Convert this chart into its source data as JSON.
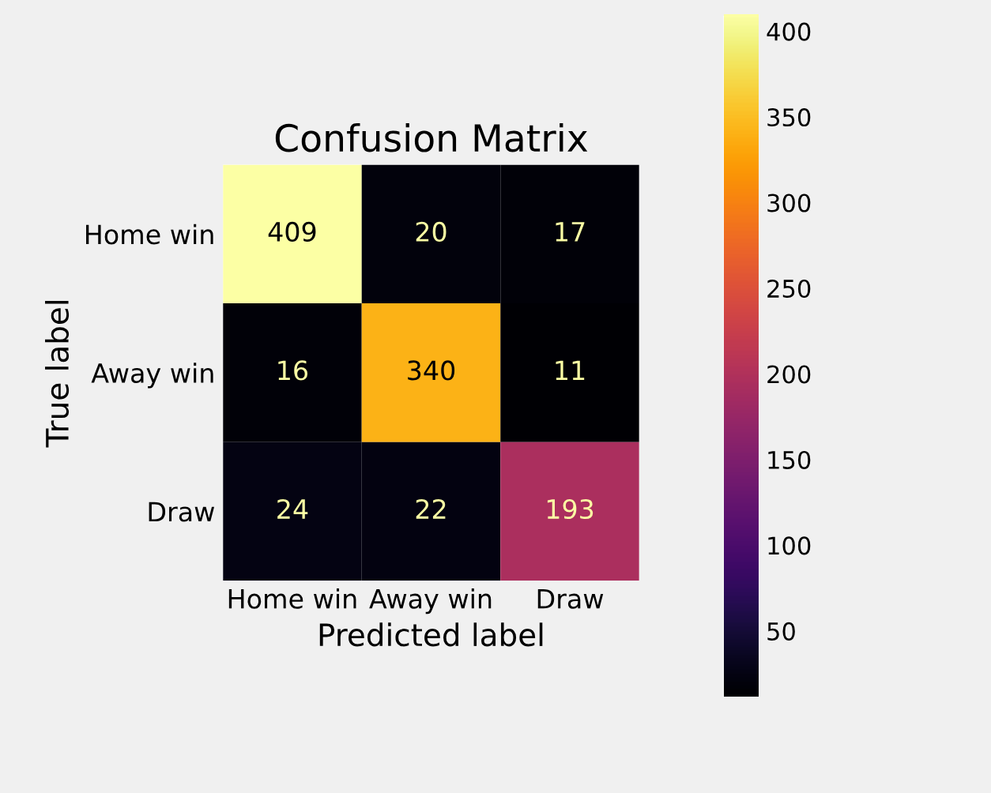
{
  "chart_data": {
    "type": "heatmap",
    "title": "Confusion Matrix",
    "xlabel": "Predicted label",
    "ylabel": "True label",
    "categories": [
      "Home win",
      "Away win",
      "Draw"
    ],
    "y_categories": [
      "Home win",
      "Away win",
      "Draw"
    ],
    "cells": [
      [
        409,
        20,
        17
      ],
      [
        16,
        340,
        11
      ],
      [
        24,
        22,
        193
      ]
    ],
    "clim": [
      11,
      409
    ],
    "cticks": [
      50,
      100,
      150,
      200,
      250,
      300,
      350,
      400
    ],
    "data_labels": true,
    "grid": false
  }
}
